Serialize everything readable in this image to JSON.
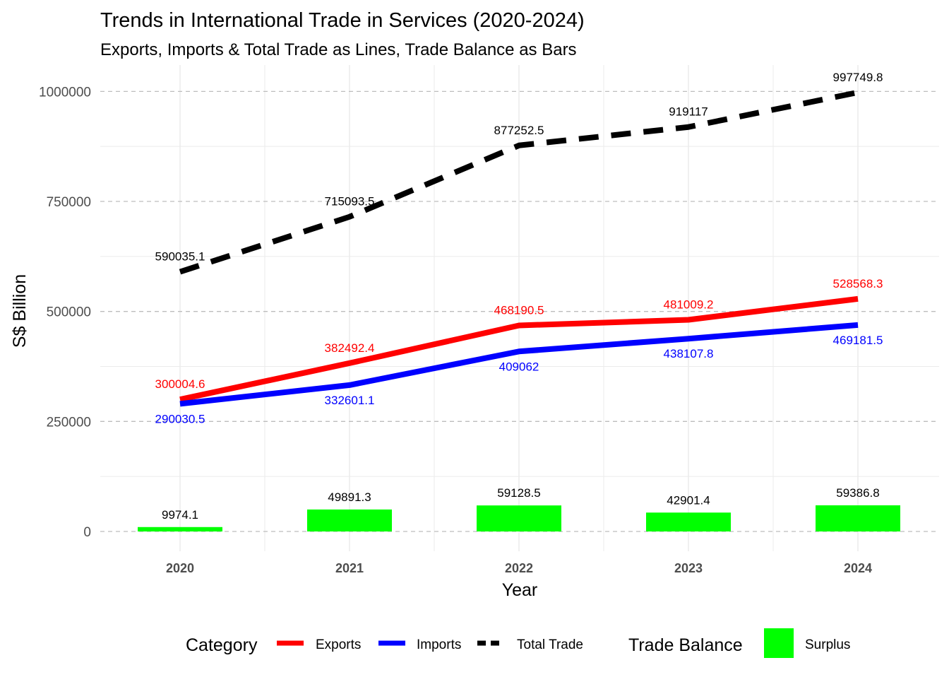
{
  "chart_data": {
    "type": "line",
    "title": "Trends in International Trade in Services (2020-2024)",
    "subtitle": "Exports, Imports & Total Trade as Lines, Trade Balance as Bars",
    "xlabel": "Year",
    "ylabel": "S$ Billion",
    "categories": [
      "2020",
      "2021",
      "2022",
      "2023",
      "2024"
    ],
    "ylim": [
      -45000,
      1060000
    ],
    "y_ticks": [
      0,
      250000,
      500000,
      750000,
      1000000
    ],
    "y_tick_labels": [
      "0",
      "250000",
      "500000",
      "750000",
      "1000000"
    ],
    "grid": true,
    "legend_position": "bottom",
    "series": [
      {
        "name": "Exports",
        "color": "#ff0000",
        "dash": "solid",
        "label_side": "above",
        "values": [
          300004.6,
          382492.4,
          468190.5,
          481009.2,
          528568.3
        ],
        "labels": [
          "300004.6",
          "382492.4",
          "468190.5",
          "481009.2",
          "528568.3"
        ]
      },
      {
        "name": "Imports",
        "color": "#0000ff",
        "dash": "solid",
        "label_side": "below",
        "values": [
          290030.5,
          332601.1,
          409062,
          438107.8,
          469181.5
        ],
        "labels": [
          "290030.5",
          "332601.1",
          "409062",
          "438107.8",
          "469181.5"
        ]
      },
      {
        "name": "Total Trade",
        "color": "#000000",
        "dash": "dashed",
        "label_side": "above",
        "values": [
          590035.1,
          715093.5,
          877252.5,
          919117,
          997749.8
        ],
        "labels": [
          "590035.1",
          "715093.5",
          "877252.5",
          "919117",
          "997749.8"
        ]
      }
    ],
    "bars": {
      "name": "Surplus",
      "color": "#00ff00",
      "values": [
        9974.1,
        49891.3,
        59128.5,
        42901.4,
        59386.8
      ],
      "labels": [
        "9974.1",
        "49891.3",
        "59128.5",
        "42901.4",
        "59386.8"
      ]
    },
    "legend": {
      "line_title": "Category",
      "bar_title": "Trade Balance",
      "items": [
        "Exports",
        "Imports",
        "Total Trade"
      ],
      "bar_item": "Surplus"
    }
  }
}
